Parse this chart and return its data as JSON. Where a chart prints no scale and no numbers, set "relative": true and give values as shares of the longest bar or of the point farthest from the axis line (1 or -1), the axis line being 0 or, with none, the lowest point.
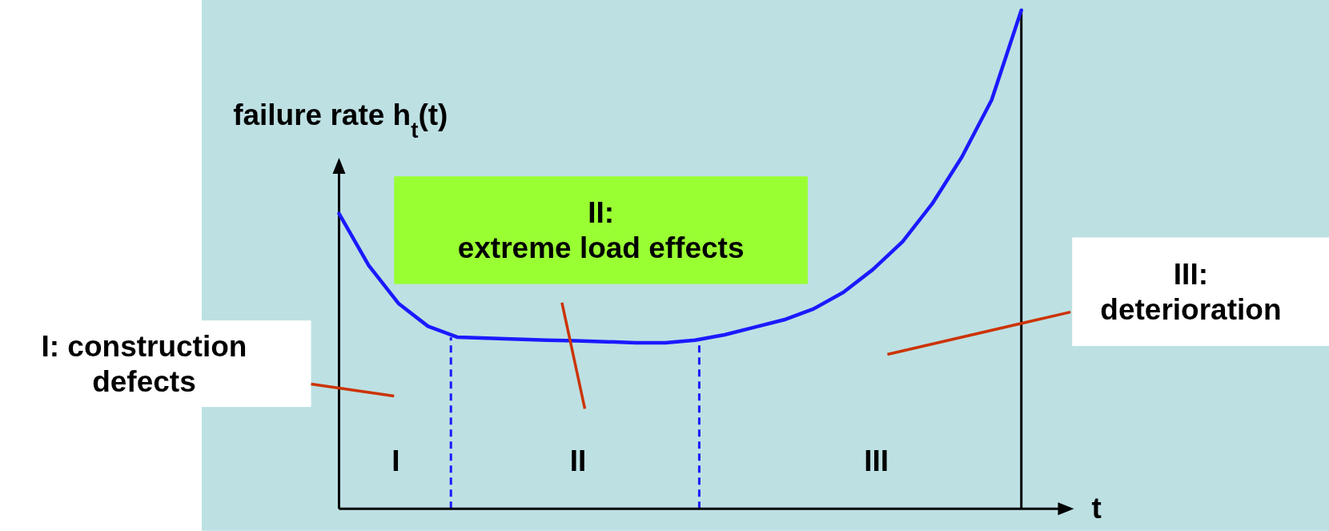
{
  "chart_data": {
    "type": "line",
    "relative": true,
    "ylabel": "failure rate h$_{t}$(t)",
    "xlabel": "t",
    "marker": "none",
    "line_style": "solid",
    "categories": [
      null,
      null,
      null,
      null,
      null,
      null,
      null,
      null,
      null,
      null,
      null,
      null,
      null,
      null,
      null,
      null,
      null,
      null,
      null,
      null,
      null,
      null,
      null,
      null
    ],
    "series": [
      {
        "color": "#1a1aff",
        "values": [
          0.592,
          0.488,
          0.412,
          0.366,
          0.344,
          0.342,
          0.34,
          0.338,
          0.337,
          0.335,
          0.333,
          0.333,
          0.338,
          0.349,
          0.364,
          0.379,
          0.401,
          0.434,
          0.48,
          0.536,
          0.612,
          0.706,
          0.82,
          1.0
        ]
      }
    ],
    "annotations": [
      "I: construction defects",
      "II: extreme load effects",
      "III: deterioration",
      "I",
      "II",
      "III"
    ]
  }
}
